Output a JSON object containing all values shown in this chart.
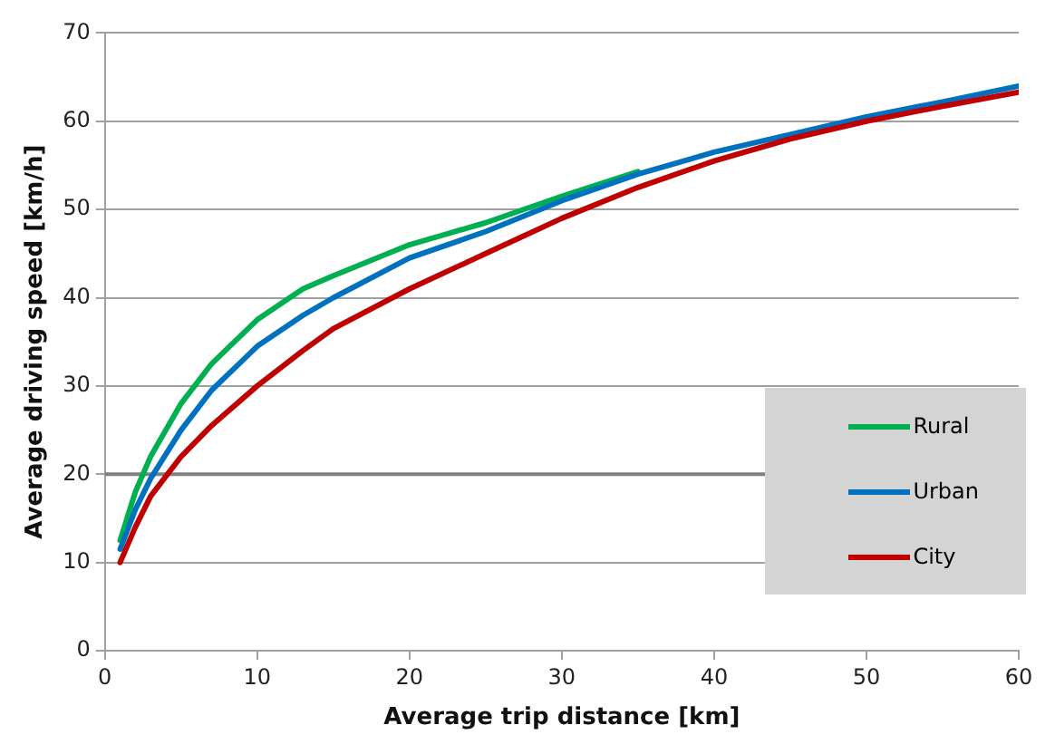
{
  "chart_data": {
    "type": "line",
    "xlabel": "Average trip distance [km]",
    "ylabel": "Average driving speed [km/h]",
    "x": [
      1,
      2,
      3,
      5,
      7,
      10,
      13,
      15,
      20,
      25,
      30,
      35,
      40,
      45,
      50,
      55,
      60
    ],
    "series": [
      {
        "name": "Rural",
        "color": "#00b050",
        "values": [
          12.5,
          18,
          22,
          28,
          32.5,
          37.5,
          41,
          42.5,
          46,
          48.5,
          51.5,
          54.3,
          null,
          null,
          null,
          null,
          null
        ]
      },
      {
        "name": "Urban",
        "color": "#0070c0",
        "values": [
          11.5,
          16,
          19.5,
          25,
          29.5,
          34.5,
          38,
          40,
          44.5,
          47.5,
          51,
          54,
          56.5,
          58.5,
          60.5,
          62.2,
          64
        ]
      },
      {
        "name": "City",
        "color": "#c00000",
        "values": [
          10,
          14,
          17.5,
          22,
          25.5,
          30,
          34,
          36.5,
          41,
          45,
          49,
          52.5,
          55.5,
          58,
          60,
          61.7,
          63.3
        ]
      }
    ],
    "xlim": [
      0,
      60
    ],
    "xticks": [
      0,
      10,
      20,
      30,
      40,
      50,
      60
    ],
    "ylim": [
      0,
      70
    ],
    "yticks": [
      0,
      10,
      20,
      30,
      40,
      50,
      60,
      70
    ],
    "grid": "y",
    "legend": "bottom right",
    "marker": "none",
    "line_style": "solid",
    "ref_lines": [
      {
        "axis": "y",
        "value": 20,
        "color": "#808080"
      }
    ]
  }
}
